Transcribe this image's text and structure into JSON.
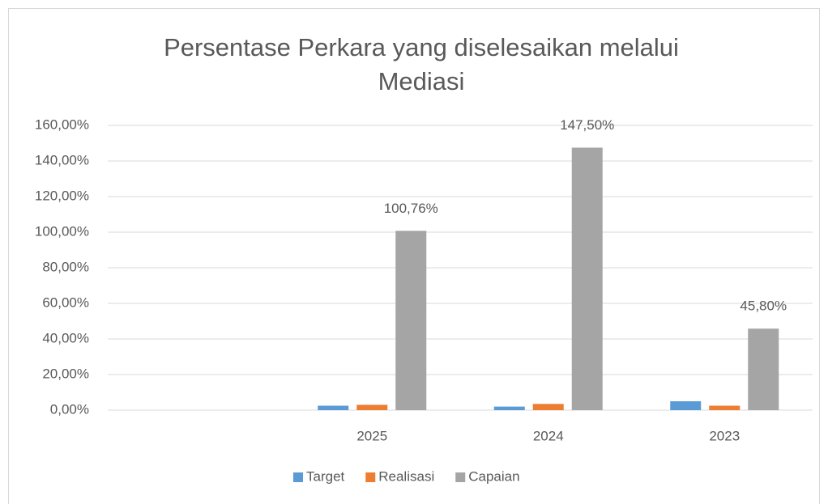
{
  "chart_data": {
    "type": "bar",
    "title": "Persentase Perkara yang diselesaikan melalui Mediasi",
    "categories": [
      null,
      "2025",
      "2024",
      "2023"
    ],
    "series": [
      {
        "name": "Target",
        "color": "#5b9bd5",
        "values": [
          null,
          2.5,
          2,
          5
        ]
      },
      {
        "name": "Realisasi",
        "color": "#ed7d31",
        "values": [
          null,
          3,
          3.5,
          2.5
        ]
      },
      {
        "name": "Capaian",
        "color": "#a5a5a5",
        "values": [
          null,
          100.76,
          147.5,
          45.8
        ],
        "value_labels": [
          null,
          "100,76%",
          "147,50%",
          "45,80%"
        ]
      }
    ],
    "ylim": [
      0,
      160
    ],
    "yticks": [
      {
        "value": 0,
        "label": "0,00%"
      },
      {
        "value": 20,
        "label": "20,00%"
      },
      {
        "value": 40,
        "label": "40,00%"
      },
      {
        "value": 60,
        "label": "60,00%"
      },
      {
        "value": 80,
        "label": "80,00%"
      },
      {
        "value": 100,
        "label": "100,00%"
      },
      {
        "value": 120,
        "label": "120,00%"
      },
      {
        "value": 140,
        "label": "140,00%"
      },
      {
        "value": 160,
        "label": "160,00%"
      }
    ],
    "grid": true,
    "legend": "bottom"
  }
}
